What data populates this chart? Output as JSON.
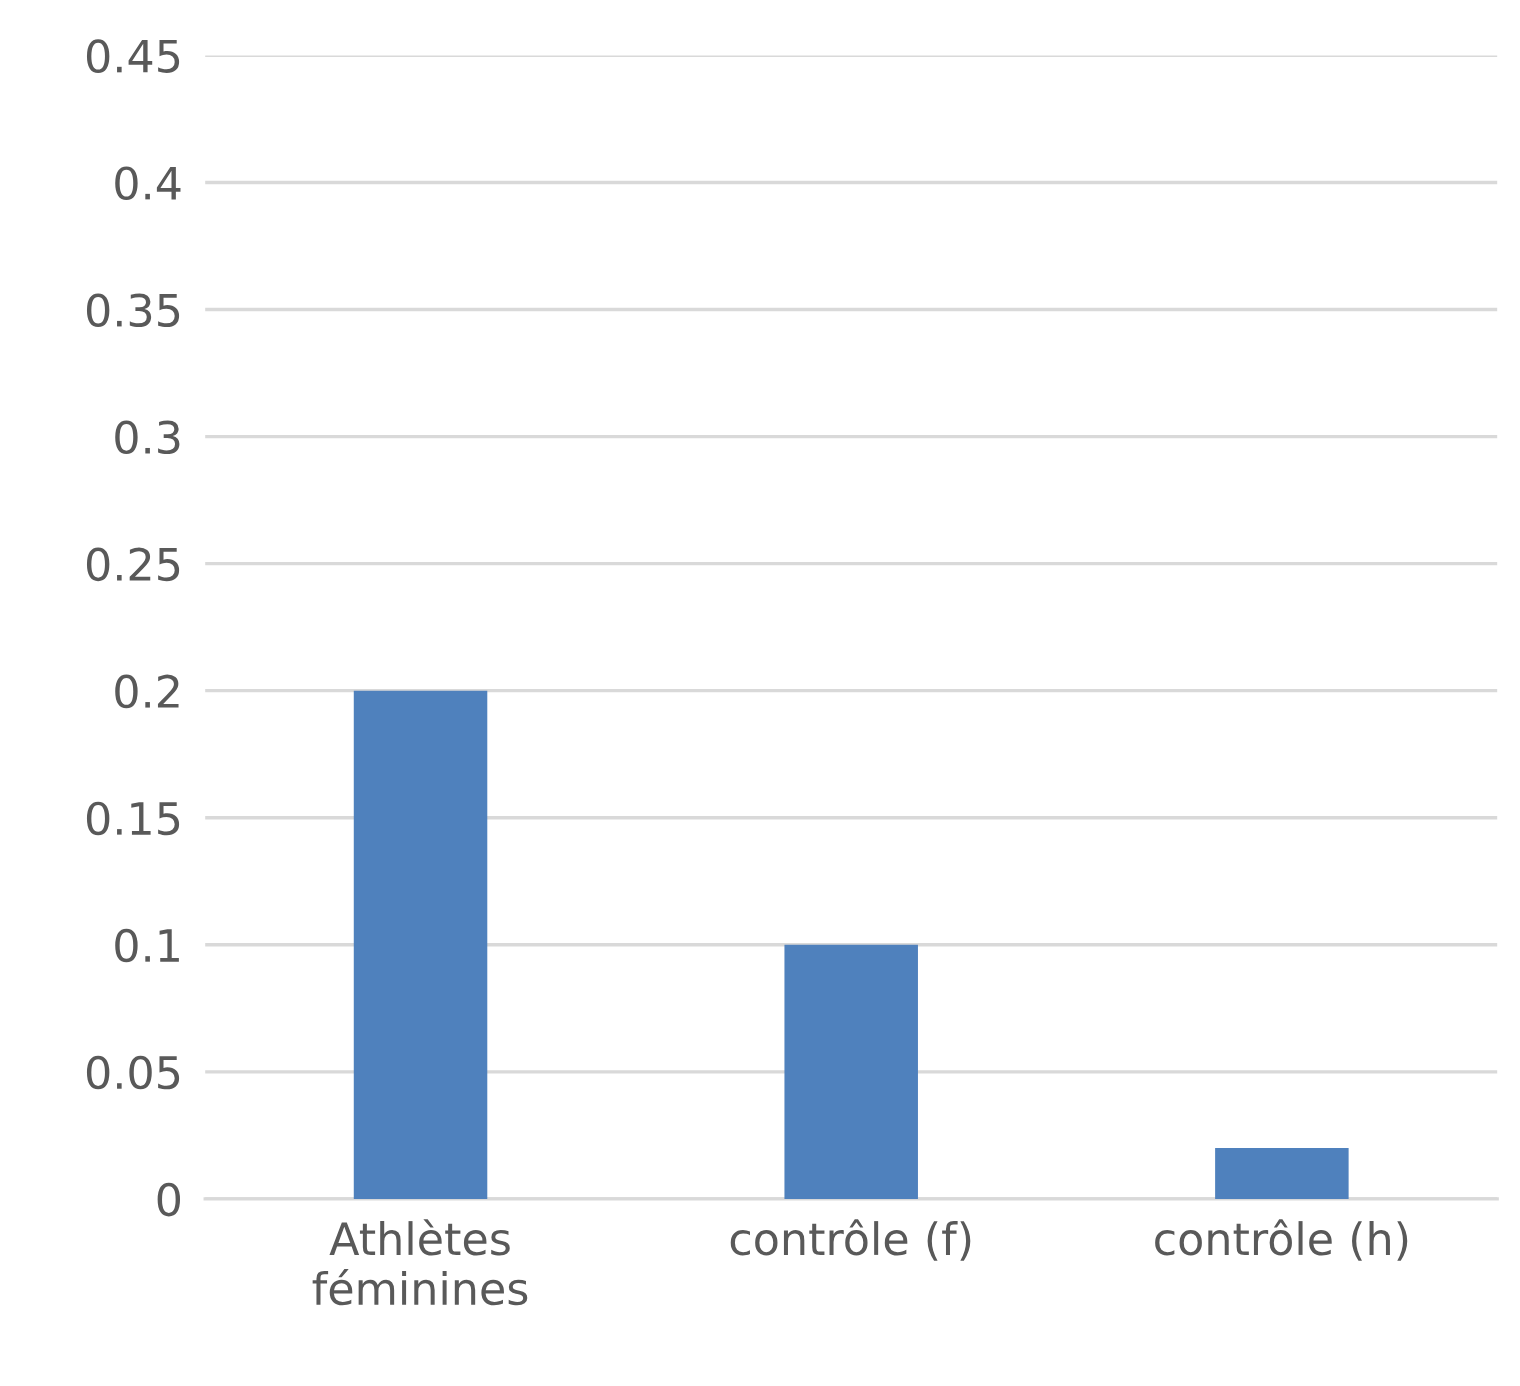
{
  "chart_data": {
    "type": "bar",
    "categories": [
      "Athlètes\nféminines",
      "contrôle (f)",
      "contrôle (h)"
    ],
    "values": [
      0.2,
      0.1,
      0.02
    ],
    "color": "#4f81bd",
    "ylim": [
      0,
      0.45
    ],
    "yticks": [
      0,
      0.05,
      0.1,
      0.15,
      0.2,
      0.25,
      0.3,
      0.35,
      0.4,
      0.45
    ],
    "grid": "y",
    "legend": false
  }
}
